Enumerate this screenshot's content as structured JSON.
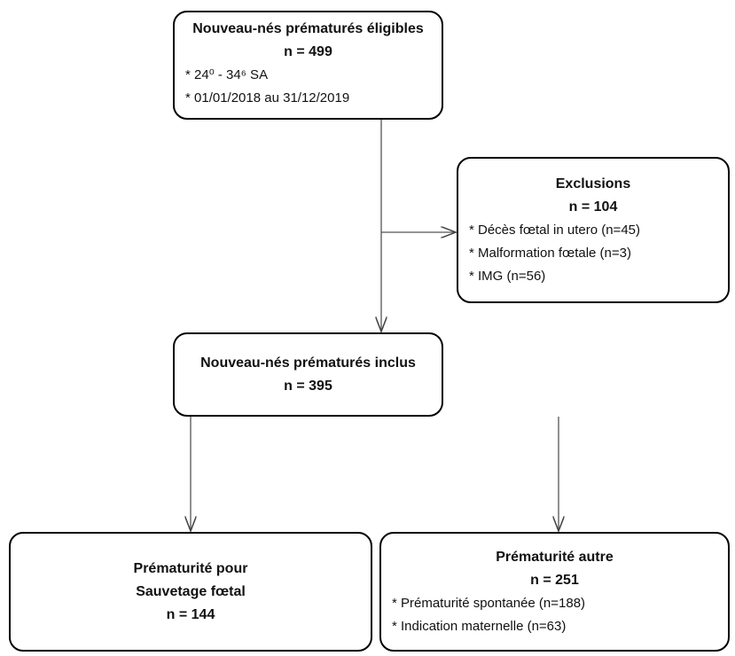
{
  "nodes": [
    {
      "title": [
        "Nouveau-nés prématurés éligibles"
      ],
      "count": "n = 499",
      "items": [
        "* 24⁰ - 34⁶ SA",
        "* 01/01/2018 au 31/12/2019"
      ]
    },
    {
      "title": [
        "Exclusions"
      ],
      "count": "n = 104",
      "items": [
        "* Décès fœtal in utero (n=45)",
        "* Malformation fœtale (n=3)",
        "* IMG (n=56)"
      ]
    },
    {
      "title": [
        "Nouveau-nés prématurés inclus"
      ],
      "count": "n = 395",
      "items": []
    },
    {
      "title": [
        "Prématurité pour",
        "Sauvetage fœtal"
      ],
      "count": "n = 144",
      "items": []
    },
    {
      "title": [
        "Prématurité autre"
      ],
      "count": "n = 251",
      "items": [
        "* Prématurité spontanée (n=188)",
        "* Indication maternelle (n=63)"
      ]
    }
  ]
}
